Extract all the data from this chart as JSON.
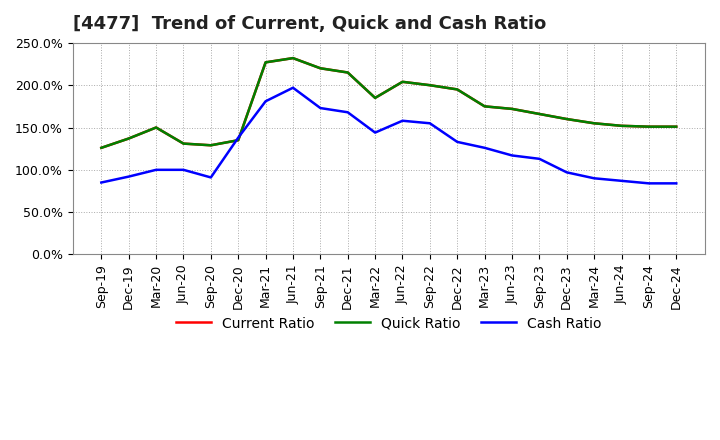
{
  "title": "[4477]  Trend of Current, Quick and Cash Ratio",
  "labels": [
    "Sep-19",
    "Dec-19",
    "Mar-20",
    "Jun-20",
    "Sep-20",
    "Dec-20",
    "Mar-21",
    "Jun-21",
    "Sep-21",
    "Dec-21",
    "Mar-22",
    "Jun-22",
    "Sep-22",
    "Dec-22",
    "Mar-23",
    "Jun-23",
    "Sep-23",
    "Dec-23",
    "Mar-24",
    "Jun-24",
    "Sep-24",
    "Dec-24"
  ],
  "current_ratio": [
    1.26,
    1.37,
    1.5,
    1.31,
    1.29,
    1.35,
    2.27,
    2.32,
    2.2,
    2.15,
    1.85,
    2.04,
    2.0,
    1.95,
    1.75,
    1.72,
    1.66,
    1.6,
    1.55,
    1.52,
    1.51,
    1.51
  ],
  "quick_ratio": [
    1.26,
    1.37,
    1.5,
    1.31,
    1.29,
    1.35,
    2.27,
    2.32,
    2.2,
    2.15,
    1.85,
    2.04,
    2.0,
    1.95,
    1.75,
    1.72,
    1.66,
    1.6,
    1.55,
    1.52,
    1.51,
    1.51
  ],
  "cash_ratio": [
    0.85,
    0.92,
    1.0,
    1.0,
    0.91,
    1.38,
    1.81,
    1.97,
    1.73,
    1.68,
    1.44,
    1.58,
    1.55,
    1.33,
    1.26,
    1.17,
    1.13,
    0.97,
    0.9,
    0.87,
    0.84,
    0.84
  ],
  "current_color": "#FF0000",
  "quick_color": "#008000",
  "cash_color": "#0000FF",
  "ylim": [
    0.0,
    2.5
  ],
  "yticks": [
    0.0,
    0.5,
    1.0,
    1.5,
    2.0,
    2.5
  ],
  "ytick_labels": [
    "0.0%",
    "50.0%",
    "100.0%",
    "150.0%",
    "200.0%",
    "250.0%"
  ],
  "background_color": "#FFFFFF",
  "grid_color": "#AAAAAA",
  "title_fontsize": 13,
  "legend_fontsize": 10,
  "axis_fontsize": 9
}
